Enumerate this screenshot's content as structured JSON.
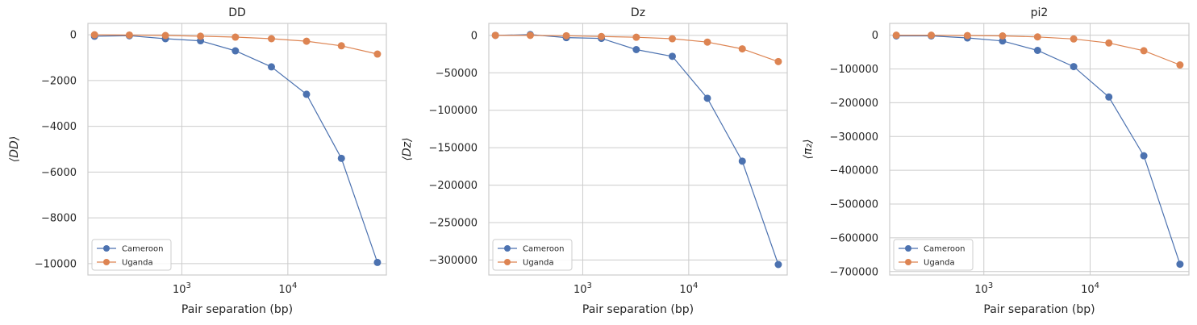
{
  "chart_data": [
    {
      "type": "line",
      "title": "DD",
      "xlabel": "Pair separation (bp)",
      "ylabel": "⟨DD⟩",
      "xscale": "log",
      "xlim": [
        130,
        85000
      ],
      "ylim": [
        -10500,
        500
      ],
      "yticks": [
        0,
        -2000,
        -4000,
        -6000,
        -8000,
        -10000
      ],
      "ytick_labels": [
        "0",
        "−2000",
        "−4000",
        "−6000",
        "−8000",
        "−10000"
      ],
      "xticks": [
        1000,
        10000
      ],
      "xtick_labels": [
        "10^3",
        "10^4"
      ],
      "grid": true,
      "legend_position": "lower-left",
      "x": [
        150,
        320,
        700,
        1500,
        3200,
        7000,
        15000,
        32000,
        70000
      ],
      "series": [
        {
          "name": "Cameroon",
          "color": "#4c72b0",
          "values": [
            -60,
            -40,
            -170,
            -260,
            -700,
            -1400,
            -2600,
            -5400,
            -9950
          ]
        },
        {
          "name": "Uganda",
          "color": "#dd8452",
          "values": [
            0,
            -10,
            -30,
            -60,
            -100,
            -170,
            -280,
            -480,
            -840
          ]
        }
      ]
    },
    {
      "type": "line",
      "title": "Dz",
      "xlabel": "Pair separation (bp)",
      "ylabel": "⟨Dz⟩",
      "xscale": "log",
      "xlim": [
        130,
        85000
      ],
      "ylim": [
        -320000,
        16000
      ],
      "yticks": [
        0,
        -50000,
        -100000,
        -150000,
        -200000,
        -250000,
        -300000
      ],
      "ytick_labels": [
        "0",
        "−50000",
        "−100000",
        "−150000",
        "−200000",
        "−250000",
        "−300000"
      ],
      "xticks": [
        1000,
        10000
      ],
      "xtick_labels": [
        "10^3",
        "10^4"
      ],
      "grid": true,
      "legend_position": "lower-left",
      "x": [
        150,
        320,
        700,
        1500,
        3200,
        7000,
        15000,
        32000,
        70000
      ],
      "series": [
        {
          "name": "Cameroon",
          "color": "#4c72b0",
          "values": [
            0,
            1000,
            -3000,
            -4000,
            -19000,
            -28000,
            -84000,
            -168000,
            -306000
          ]
        },
        {
          "name": "Uganda",
          "color": "#dd8452",
          "values": [
            0,
            0,
            -500,
            -1500,
            -2500,
            -4500,
            -9000,
            -18000,
            -35000
          ]
        }
      ]
    },
    {
      "type": "line",
      "title": "pi2",
      "xlabel": "Pair separation (bp)",
      "ylabel": "⟨π₂⟩",
      "xscale": "log",
      "xlim": [
        130,
        85000
      ],
      "ylim": [
        -710000,
        35000
      ],
      "yticks": [
        0,
        -100000,
        -200000,
        -300000,
        -400000,
        -500000,
        -600000,
        -700000
      ],
      "ytick_labels": [
        "0",
        "−100000",
        "−200000",
        "−300000",
        "−400000",
        "−500000",
        "−600000",
        "−700000"
      ],
      "xticks": [
        1000,
        10000
      ],
      "xtick_labels": [
        "10^3",
        "10^4"
      ],
      "grid": true,
      "legend_position": "lower-left",
      "x": [
        150,
        320,
        700,
        1500,
        3200,
        7000,
        15000,
        32000,
        70000
      ],
      "series": [
        {
          "name": "Cameroon",
          "color": "#4c72b0",
          "values": [
            -2000,
            -2000,
            -8000,
            -17000,
            -45000,
            -93000,
            -183000,
            -357000,
            -678000
          ]
        },
        {
          "name": "Uganda",
          "color": "#dd8452",
          "values": [
            0,
            0,
            -1000,
            -2000,
            -5000,
            -11000,
            -23000,
            -46000,
            -88000
          ]
        }
      ]
    }
  ]
}
